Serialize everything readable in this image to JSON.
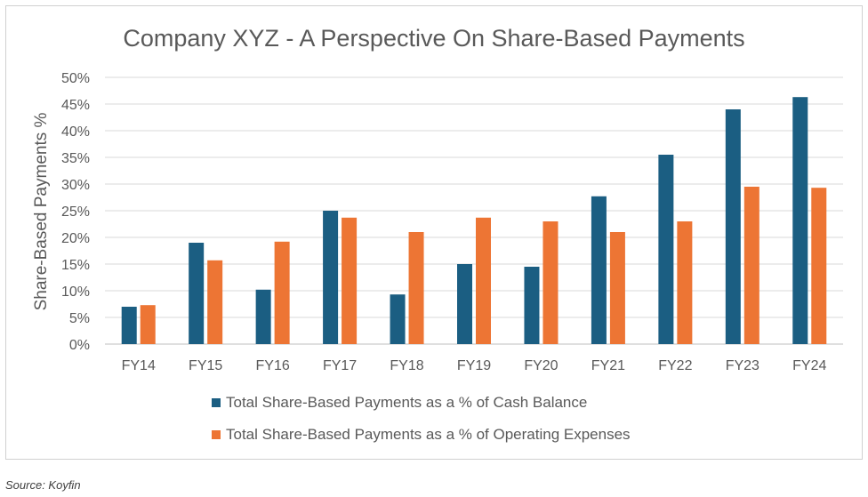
{
  "chart_data": {
    "type": "bar",
    "title": "Company XYZ - A Perspective On Share-Based Payments",
    "ylabel": "Share-Based Payments %",
    "xlabel": "",
    "categories": [
      "FY14",
      "FY15",
      "FY16",
      "FY17",
      "FY18",
      "FY19",
      "FY20",
      "FY21",
      "FY22",
      "FY23",
      "FY24"
    ],
    "series": [
      {
        "name": "Total Share-Based Payments as a % of Cash Balance",
        "color": "#1b5e82",
        "values": [
          7.0,
          19.0,
          10.2,
          25.0,
          9.3,
          15.0,
          14.5,
          27.7,
          35.5,
          44.0,
          46.3
        ]
      },
      {
        "name": "Total Share-Based Payments as a % of Operating Expenses",
        "color": "#ed7534",
        "values": [
          7.3,
          15.7,
          19.2,
          23.7,
          21.0,
          23.7,
          23.0,
          21.0,
          23.0,
          29.5,
          29.3
        ]
      }
    ],
    "ylim": [
      0,
      50
    ],
    "yticks": [
      0,
      5,
      10,
      15,
      20,
      25,
      30,
      35,
      40,
      45,
      50
    ],
    "ytick_labels": [
      "0%",
      "5%",
      "10%",
      "15%",
      "20%",
      "25%",
      "30%",
      "35%",
      "40%",
      "45%",
      "50%"
    ],
    "grid": true,
    "legend": "bottom"
  },
  "source": "Source: Koyfin"
}
